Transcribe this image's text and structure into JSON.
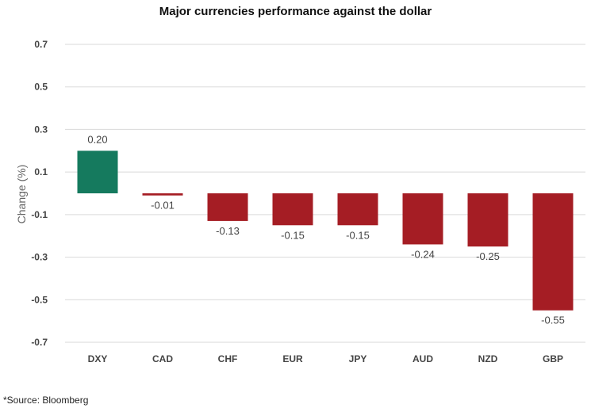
{
  "source_note": "*Source: Bloomberg",
  "chart_data": {
    "type": "bar",
    "title": "Major currencies performance against the dollar",
    "xlabel": "",
    "ylabel": "Change (%)",
    "categories": [
      "DXY",
      "CAD",
      "CHF",
      "EUR",
      "JPY",
      "AUD",
      "NZD",
      "GBP"
    ],
    "values": [
      0.2,
      -0.01,
      -0.13,
      -0.15,
      -0.15,
      -0.24,
      -0.25,
      -0.55
    ],
    "value_labels": [
      "0.20",
      "-0.01",
      "-0.13",
      "-0.15",
      "-0.15",
      "-0.24",
      "-0.25",
      "-0.55"
    ],
    "ylim": [
      -0.7,
      0.7
    ],
    "yticks": [
      0.7,
      0.5,
      0.3,
      0.1,
      -0.1,
      -0.3,
      -0.5,
      -0.7
    ],
    "ytick_labels": [
      "0.7",
      "0.5",
      "0.3",
      "0.1",
      "-0.1",
      "-0.3",
      "-0.5",
      "-0.7"
    ],
    "grid": true,
    "legend": "none",
    "colors": {
      "positive": "#157a5e",
      "negative": "#a51d24",
      "grid": "#d9d9d9"
    }
  }
}
